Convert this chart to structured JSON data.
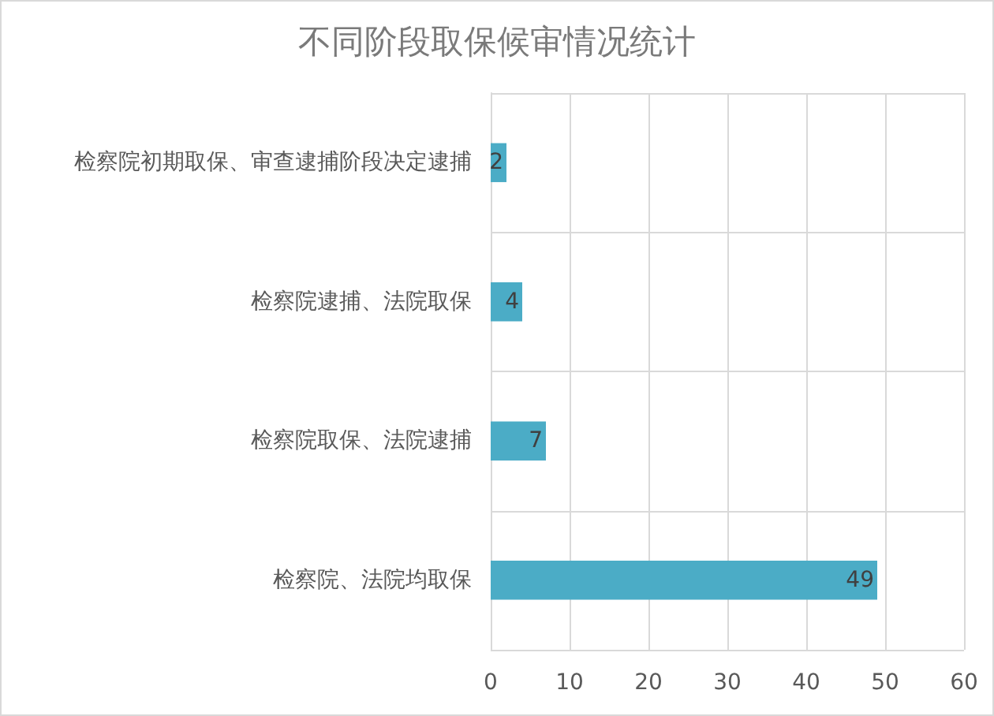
{
  "chart_data": {
    "type": "bar",
    "orientation": "horizontal",
    "title": "不同阶段取保候审情况统计",
    "categories": [
      "检察院初期取保、审查逮捕阶段决定逮捕",
      "检察院逮捕、法院取保",
      "检察院取保、法院逮捕",
      "检察院、法院均取保"
    ],
    "values": [
      2,
      4,
      7,
      49
    ],
    "color": "#4bacc6",
    "xlim": [
      0,
      60
    ],
    "xticks": [
      0,
      10,
      20,
      30,
      40,
      50,
      60
    ],
    "grid": true,
    "data_labels": true
  }
}
